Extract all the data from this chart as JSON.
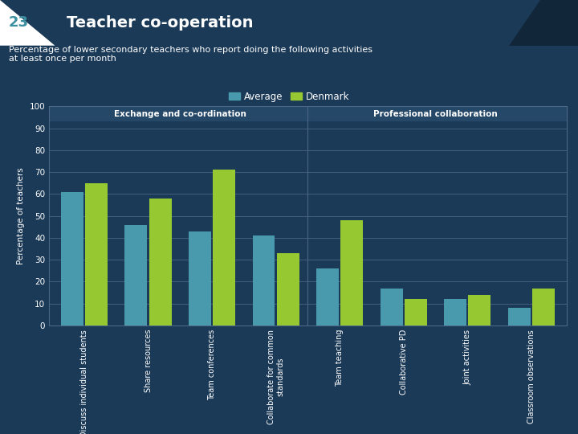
{
  "title": "Teacher co-operation",
  "slide_number": "23",
  "subtitle": "Percentage of lower secondary teachers who report doing the following activities\nat least once per month",
  "categories": [
    "Discuss individual students",
    "Share resources",
    "Team conferences",
    "Collaborate for common\nstandards",
    "Team teaching",
    "Collaborative PD",
    "Joint activities",
    "Classroom observations"
  ],
  "group_labels": [
    "Exchange and co-ordination",
    "Professional collaboration"
  ],
  "average_values": [
    61,
    46,
    43,
    41,
    26,
    17,
    12,
    8
  ],
  "denmark_values": [
    65,
    58,
    71,
    33,
    48,
    12,
    14,
    17
  ],
  "average_color": "#4a9aad",
  "denmark_color": "#96c832",
  "bg_color": "#1b3a57",
  "plot_bg_color": "#1b3a57",
  "header_bg": "#8b2e22",
  "header_num_bg": "#f0f0f0",
  "grid_color": "#4a6585",
  "text_color": "#ffffff",
  "ylabel": "Percentage of teachers",
  "ylim": [
    0,
    100
  ],
  "yticks": [
    0,
    10,
    20,
    30,
    40,
    50,
    60,
    70,
    80,
    90,
    100
  ]
}
